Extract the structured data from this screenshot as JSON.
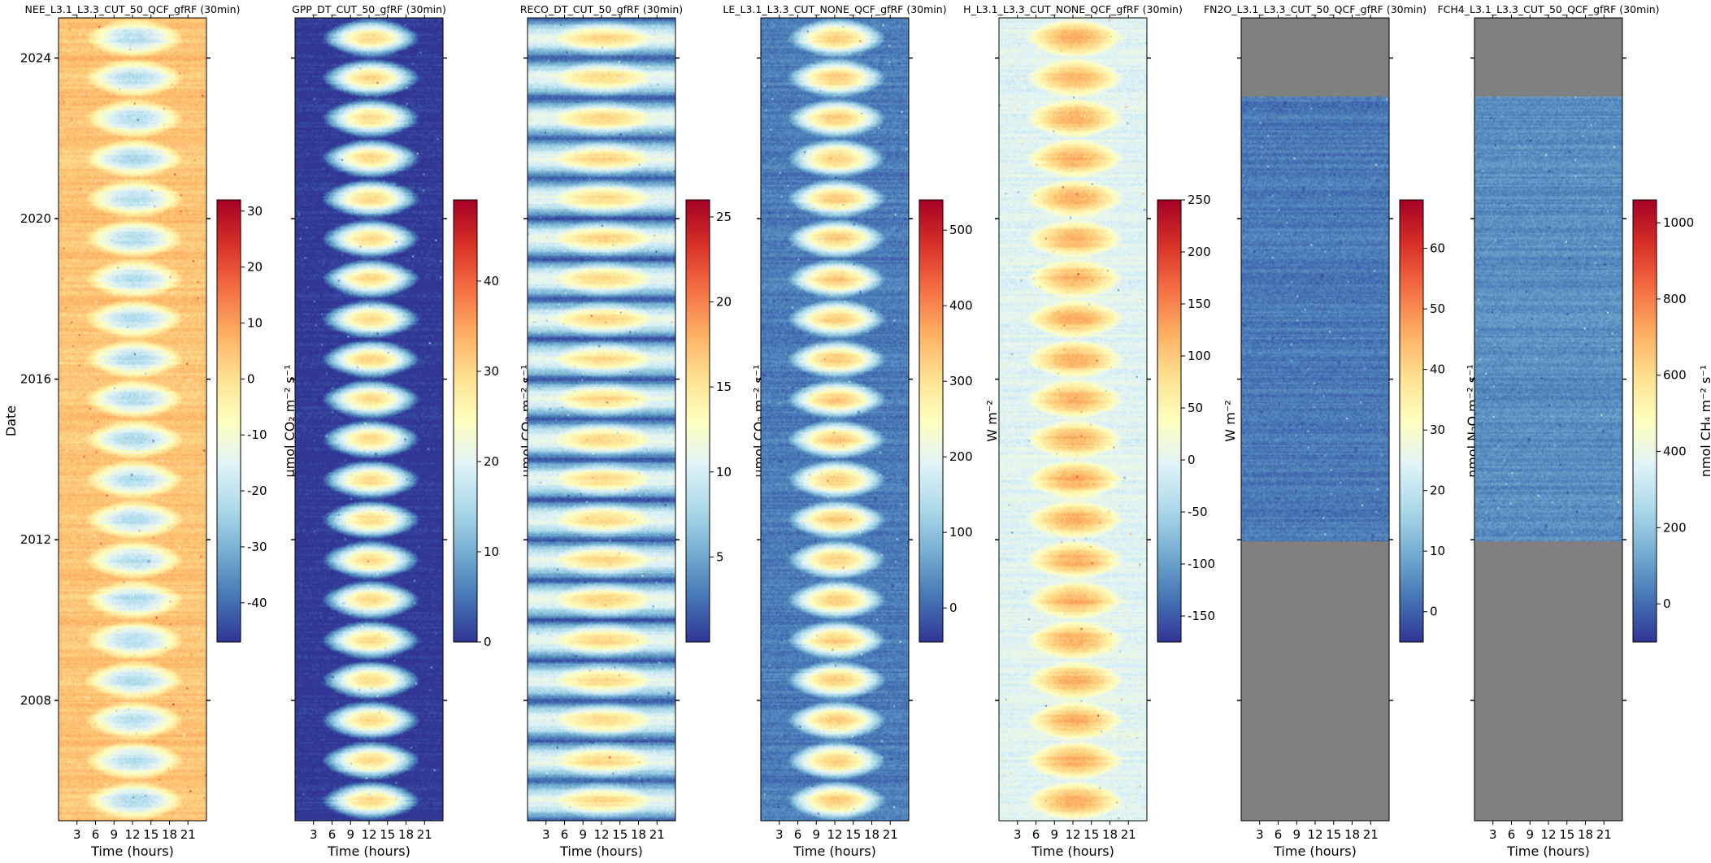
{
  "figure": {
    "date_axis_label": "Date",
    "date_ticks": [
      "2008",
      "2012",
      "2016",
      "2020",
      "2024"
    ],
    "date_tick_years": [
      2008,
      2012,
      2016,
      2020,
      2024
    ],
    "date_range": [
      2005.0,
      2025.0
    ],
    "hour_axis_label": "Time (hours)",
    "hour_ticks": [
      "3",
      "6",
      "9",
      "12",
      "15",
      "18",
      "21"
    ],
    "hour_tick_values": [
      3,
      6,
      9,
      12,
      15,
      18,
      21
    ],
    "hour_range": [
      0,
      24
    ],
    "colormap": "RdYlBu_r",
    "missing_color": "#808080"
  },
  "chart_data": [
    {
      "type": "heatmap",
      "title": "NEE_L3.1_L3.3_CUT_50_QCF_gfRF (30min)",
      "x": "hour of day",
      "y": "date",
      "cbar_label": "μmol CO₂ m⁻² s⁻¹",
      "cbar_ticks": [
        "30",
        "20",
        "10",
        "0",
        "-10",
        "-20",
        "-30",
        "-40"
      ],
      "cbar_tick_values": [
        30,
        20,
        10,
        0,
        -10,
        -20,
        -30,
        -40
      ],
      "vmin": -47,
      "vmax": 32,
      "night_value": 4,
      "day_peak": -22,
      "winter_value": 6,
      "data_years": [
        2005.0,
        2025.0
      ]
    },
    {
      "type": "heatmap",
      "title": "GPP_DT_CUT_50_gfRF (30min)",
      "x": "hour of day",
      "y": "date",
      "cbar_label": "μmol CO₂ m⁻² s⁻¹",
      "cbar_ticks": [
        "40",
        "30",
        "20",
        "10",
        "0"
      ],
      "cbar_tick_values": [
        40,
        30,
        20,
        10,
        0
      ],
      "vmin": 0,
      "vmax": 49,
      "night_value": 0,
      "day_peak": 30,
      "winter_value": 0,
      "data_years": [
        2005.0,
        2025.0
      ]
    },
    {
      "type": "heatmap",
      "title": "RECO_DT_CUT_50_gfRF (30min)",
      "x": "hour of day",
      "y": "date",
      "cbar_label": "μmol CO₂ m⁻² s⁻¹",
      "cbar_ticks": [
        "25",
        "20",
        "15",
        "10",
        "5"
      ],
      "cbar_tick_values": [
        25,
        20,
        15,
        10,
        5
      ],
      "vmin": 0,
      "vmax": 26,
      "night_value": 11,
      "day_peak": 16,
      "winter_value": 1,
      "data_years": [
        2005.0,
        2025.0
      ]
    },
    {
      "type": "heatmap",
      "title": "LE_L3.1_L3.3_CUT_NONE_QCF_gfRF (30min)",
      "x": "hour of day",
      "y": "date",
      "cbar_label": "W m⁻²",
      "cbar_ticks": [
        "500",
        "400",
        "300",
        "200",
        "100",
        "0"
      ],
      "cbar_tick_values": [
        500,
        400,
        300,
        200,
        100,
        0
      ],
      "vmin": -45,
      "vmax": 540,
      "night_value": 25,
      "day_peak": 330,
      "winter_value": 15,
      "data_years": [
        2005.0,
        2025.0
      ]
    },
    {
      "type": "heatmap",
      "title": "H_L3.1_L3.3_CUT_NONE_QCF_gfRF (30min)",
      "x": "hour of day",
      "y": "date",
      "cbar_label": "W m⁻²",
      "cbar_ticks": [
        "250",
        "200",
        "150",
        "100",
        "50",
        "0",
        "-50",
        "-100",
        "-150"
      ],
      "cbar_tick_values": [
        250,
        200,
        150,
        100,
        50,
        0,
        -50,
        -100,
        -150
      ],
      "vmin": -175,
      "vmax": 250,
      "night_value": -5,
      "day_peak": 120,
      "winter_value": 0,
      "data_years": [
        2005.0,
        2025.0
      ]
    },
    {
      "type": "heatmap",
      "title": "FN2O_L3.1_L3.3_CUT_50_QCF_gfRF (30min)",
      "x": "hour of day",
      "y": "date",
      "cbar_label": "nmol N₂O m⁻² s⁻¹",
      "cbar_ticks": [
        "60",
        "50",
        "40",
        "30",
        "20",
        "10",
        "0"
      ],
      "cbar_tick_values": [
        60,
        50,
        40,
        30,
        20,
        10,
        0
      ],
      "vmin": -5,
      "vmax": 68,
      "night_value": 3,
      "day_peak": 3,
      "winter_value": 3,
      "data_years": [
        2011.95,
        2023.05
      ]
    },
    {
      "type": "heatmap",
      "title": "FCH4_L3.1_L3.3_CUT_50_QCF_gfRF (30min)",
      "x": "hour of day",
      "y": "date",
      "cbar_label": "nmol CH₄ m⁻² s⁻¹",
      "cbar_ticks": [
        "1000",
        "800",
        "600",
        "400",
        "200",
        "0"
      ],
      "cbar_tick_values": [
        1000,
        800,
        600,
        400,
        200,
        0
      ],
      "vmin": -100,
      "vmax": 1060,
      "night_value": 70,
      "day_peak": 70,
      "winter_value": 70,
      "data_years": [
        2011.95,
        2023.05
      ]
    }
  ]
}
